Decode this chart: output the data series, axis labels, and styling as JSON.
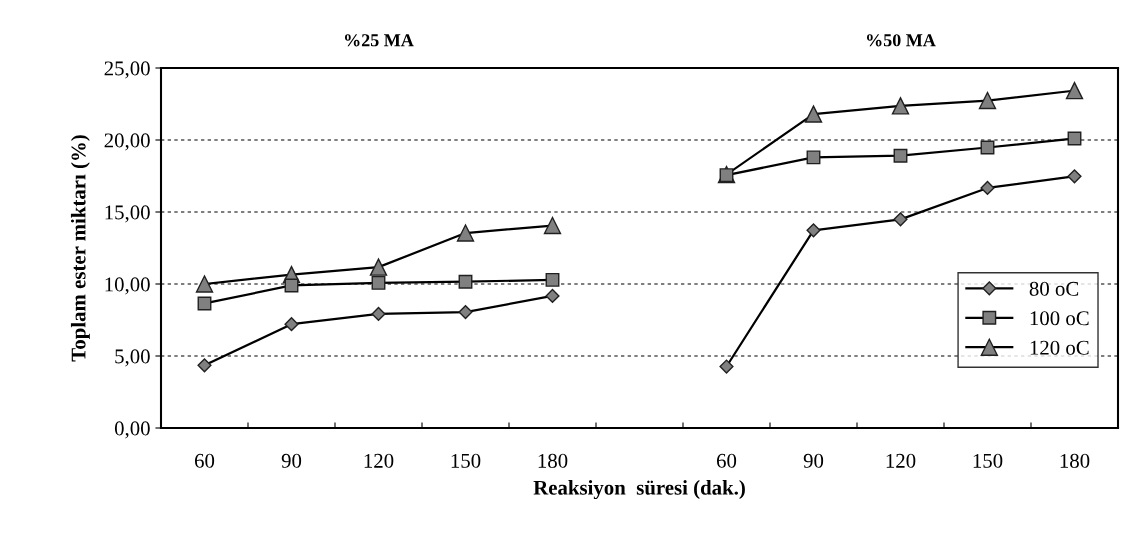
{
  "chart_data": {
    "type": "line",
    "xlabel": "Reaksiyon  süresi (dak.)",
    "ylabel": "Toplam ester miktarı (%)",
    "annotations": [
      "%25 MA",
      "%50 MA"
    ],
    "categories": [
      "60",
      "90",
      "120",
      "150",
      "180",
      null,
      "60",
      "90",
      "120",
      "150",
      "180"
    ],
    "series": [
      {
        "name": "80 oC",
        "color": "#000000",
        "marker": "diamond",
        "values": [
          4.35,
          7.21,
          7.92,
          8.05,
          9.17,
          null,
          4.27,
          13.73,
          14.49,
          16.67,
          17.48
        ]
      },
      {
        "name": "100 oC",
        "color": "#000000",
        "marker": "square",
        "values": [
          8.65,
          9.9,
          10.08,
          10.16,
          10.29,
          null,
          17.56,
          18.79,
          18.91,
          19.48,
          20.1
        ]
      },
      {
        "name": "120 oC",
        "color": "#000000",
        "marker": "triangle",
        "values": [
          10.0,
          10.65,
          11.17,
          13.54,
          14.06,
          null,
          17.6,
          21.8,
          22.37,
          22.74,
          23.43
        ]
      }
    ],
    "ylim": [
      0,
      25
    ],
    "yticks": [
      {
        "value": 0,
        "label": "0,00"
      },
      {
        "value": 5,
        "label": "5,00"
      },
      {
        "value": 10,
        "label": "10,00"
      },
      {
        "value": 15,
        "label": "15,00"
      },
      {
        "value": 20,
        "label": "20,00"
      },
      {
        "value": 25,
        "label": "25,00"
      }
    ],
    "grid": "y",
    "legend": "right",
    "line_style": "solid"
  }
}
